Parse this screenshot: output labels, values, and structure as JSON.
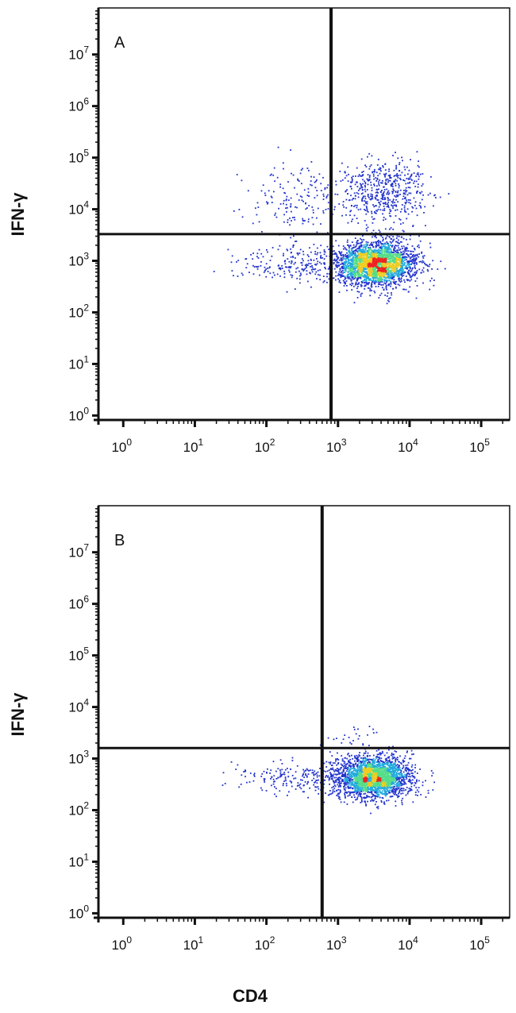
{
  "chart_data": [
    {
      "type": "scatter",
      "panel_label": "A",
      "xlabel": "",
      "ylabel": "IFN-γ",
      "x_scale": "log",
      "y_scale": "log",
      "xlim": [
        0.45,
        250000
      ],
      "ylim": [
        0.82,
        80000000
      ],
      "x_ticks": [
        "10|0",
        "10|1",
        "10|2",
        "10|3",
        "10|4",
        "10|5"
      ],
      "y_ticks": [
        "10|0",
        "10|1",
        "10|2",
        "10|3",
        "10|4",
        "10|5",
        "10|6",
        "10|7"
      ],
      "x_tick_values": [
        1,
        10,
        100,
        1000,
        10000,
        100000
      ],
      "y_tick_values": [
        1,
        10,
        100,
        1000,
        10000,
        100000,
        1000000,
        10000000
      ],
      "quadrant_gate": {
        "x": 800,
        "y": 3300
      },
      "populations": [
        {
          "name_role": "CD4+ IFN-γ− main cluster",
          "count": 2600,
          "center": [
            3300,
            900
          ],
          "spread_log10": [
            0.28,
            0.22
          ]
        },
        {
          "name_role": "CD4+ IFN-γ+ cluster",
          "count": 520,
          "center": [
            4500,
            22000
          ],
          "spread_log10": [
            0.3,
            0.3
          ]
        },
        {
          "name_role": "CD4− IFN-γ+ scatter",
          "count": 170,
          "center": [
            300,
            18000
          ],
          "spread_log10": [
            0.35,
            0.35
          ]
        },
        {
          "name_role": "CD4− IFN-γ− scatter",
          "count": 240,
          "center": [
            250,
            900
          ],
          "spread_log10": [
            0.45,
            0.18
          ]
        }
      ]
    },
    {
      "type": "scatter",
      "panel_label": "B",
      "xlabel": "CD4",
      "ylabel": "IFN-γ",
      "x_scale": "log",
      "y_scale": "log",
      "xlim": [
        0.45,
        250000
      ],
      "ylim": [
        0.82,
        80000000
      ],
      "x_ticks": [
        "10|0",
        "10|1",
        "10|2",
        "10|3",
        "10|4",
        "10|5"
      ],
      "y_ticks": [
        "10|0",
        "10|1",
        "10|2",
        "10|3",
        "10|4",
        "10|5",
        "10|6",
        "10|7"
      ],
      "x_tick_values": [
        1,
        10,
        100,
        1000,
        10000,
        100000
      ],
      "y_tick_values": [
        1,
        10,
        100,
        1000,
        10000,
        100000,
        1000000,
        10000000
      ],
      "quadrant_gate": {
        "x": 600,
        "y": 1600
      },
      "populations": [
        {
          "name_role": "CD4+ IFN-γ− main cluster",
          "count": 2400,
          "center": [
            3000,
            450
          ],
          "spread_log10": [
            0.27,
            0.2
          ]
        },
        {
          "name_role": "CD4− IFN-γ− scatter",
          "count": 200,
          "center": [
            250,
            420
          ],
          "spread_log10": [
            0.4,
            0.15
          ]
        },
        {
          "name_role": "CD4+ IFN-γ+ scatter",
          "count": 25,
          "center": [
            1500,
            2500
          ],
          "spread_log10": [
            0.25,
            0.12
          ]
        }
      ]
    }
  ],
  "colors": {
    "density_low": "#2233cc",
    "density_mid1": "#22aadd",
    "density_mid2": "#55dd88",
    "density_high": "#eecc22",
    "density_peak": "#ee2222",
    "axis": "#111111"
  }
}
